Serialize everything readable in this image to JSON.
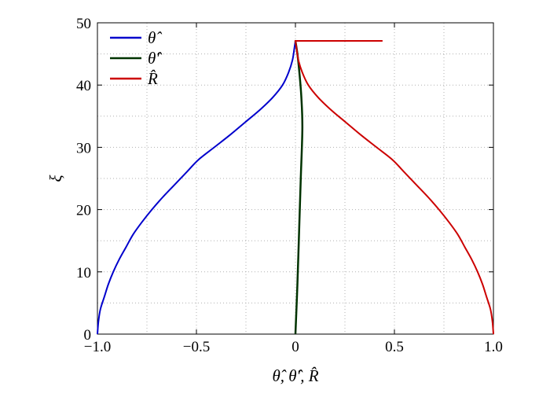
{
  "chart_data": {
    "type": "line",
    "xlabel": "θ̂, θ̂′, R̂",
    "ylabel": "ξ",
    "xlim": [
      -1.0,
      1.0
    ],
    "ylim": [
      0,
      50
    ],
    "grid": true,
    "legend_placement": "top-left",
    "xticks": [
      {
        "value": -1.0,
        "label": "−1.0"
      },
      {
        "value": -0.5,
        "label": "−0.5"
      },
      {
        "value": 0,
        "label": "0"
      },
      {
        "value": 0.5,
        "label": "0.5"
      },
      {
        "value": 1.0,
        "label": "1.0"
      }
    ],
    "yticks": [
      {
        "value": 0,
        "label": "0"
      },
      {
        "value": 10,
        "label": "10"
      },
      {
        "value": 20,
        "label": "20"
      },
      {
        "value": 30,
        "label": "30"
      },
      {
        "value": 40,
        "label": "40"
      },
      {
        "value": 50,
        "label": "50"
      }
    ],
    "series": [
      {
        "name": "θ̂",
        "color": "#0000cc",
        "points": [
          [
            -1.0,
            0
          ],
          [
            -0.995,
            2
          ],
          [
            -0.985,
            4
          ],
          [
            -0.965,
            6
          ],
          [
            -0.945,
            8
          ],
          [
            -0.92,
            10
          ],
          [
            -0.89,
            12
          ],
          [
            -0.855,
            14
          ],
          [
            -0.82,
            16
          ],
          [
            -0.775,
            18
          ],
          [
            -0.725,
            20
          ],
          [
            -0.67,
            22
          ],
          [
            -0.61,
            24
          ],
          [
            -0.55,
            26
          ],
          [
            -0.49,
            28
          ],
          [
            -0.41,
            30
          ],
          [
            -0.33,
            32
          ],
          [
            -0.255,
            34
          ],
          [
            -0.18,
            36
          ],
          [
            -0.115,
            38
          ],
          [
            -0.065,
            40
          ],
          [
            -0.035,
            42
          ],
          [
            -0.015,
            44
          ],
          [
            -0.005,
            46
          ],
          [
            0.0,
            47.1
          ]
        ]
      },
      {
        "name": "θ̂′",
        "color": "#003300",
        "points": [
          [
            0.0,
            0
          ],
          [
            0.01,
            8
          ],
          [
            0.02,
            18
          ],
          [
            0.027,
            25
          ],
          [
            0.035,
            33
          ],
          [
            0.03,
            38
          ],
          [
            0.02,
            42
          ],
          [
            0.01,
            45
          ],
          [
            0.0,
            47.1
          ]
        ]
      },
      {
        "name": "R̂",
        "color": "#cc0000",
        "points": [
          [
            1.0,
            0
          ],
          [
            0.995,
            2
          ],
          [
            0.985,
            4
          ],
          [
            0.965,
            6
          ],
          [
            0.945,
            8
          ],
          [
            0.92,
            10
          ],
          [
            0.89,
            12
          ],
          [
            0.855,
            14
          ],
          [
            0.82,
            16
          ],
          [
            0.775,
            18
          ],
          [
            0.725,
            20
          ],
          [
            0.67,
            22
          ],
          [
            0.61,
            24
          ],
          [
            0.55,
            26
          ],
          [
            0.49,
            28
          ],
          [
            0.41,
            30
          ],
          [
            0.33,
            32
          ],
          [
            0.255,
            34
          ],
          [
            0.18,
            36
          ],
          [
            0.115,
            38
          ],
          [
            0.065,
            40
          ],
          [
            0.035,
            42
          ],
          [
            0.015,
            44
          ],
          [
            0.005,
            46
          ],
          [
            0.0,
            47.1
          ],
          [
            0.44,
            47.1
          ]
        ]
      }
    ]
  }
}
